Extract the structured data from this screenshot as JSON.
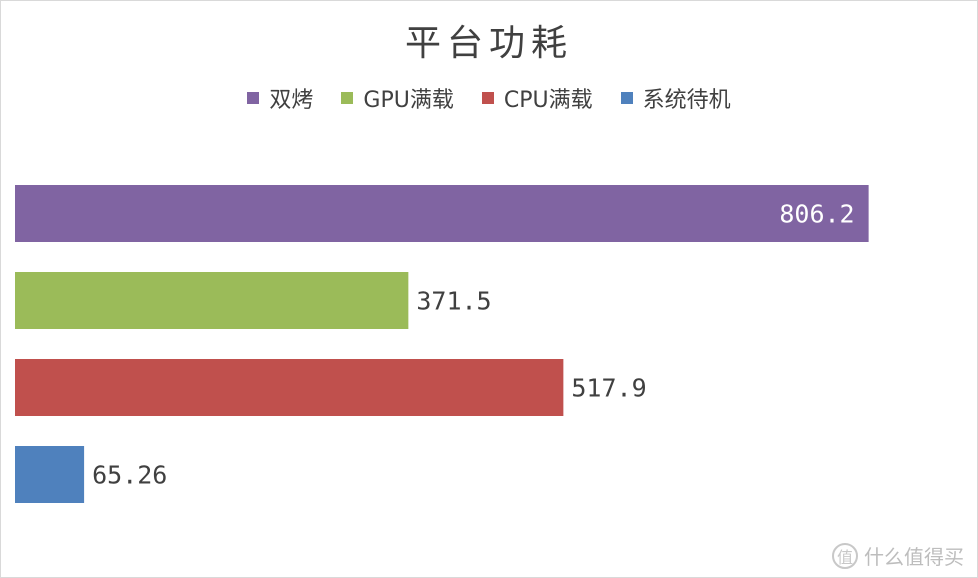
{
  "chart_data": {
    "type": "bar",
    "orientation": "horizontal",
    "title": "平台功耗",
    "xlabel": "",
    "ylabel": "",
    "legend_position": "top",
    "grid": false,
    "xlim": [
      0,
      850
    ],
    "series": [
      {
        "name": "双烤",
        "value": 806.2,
        "label": "806.2",
        "color": "#8064a2",
        "label_inside": true
      },
      {
        "name": "GPU满载",
        "value": 371.5,
        "label": "371.5",
        "color": "#9bbb59",
        "label_inside": false
      },
      {
        "name": "CPU满载",
        "value": 517.9,
        "label": "517.9",
        "color": "#c0504d",
        "label_inside": false
      },
      {
        "name": "系统待机",
        "value": 65.26,
        "label": "65.26",
        "color": "#4f81bd",
        "label_inside": false
      }
    ]
  },
  "watermark": {
    "icon": "值",
    "text": "什么值得买"
  }
}
